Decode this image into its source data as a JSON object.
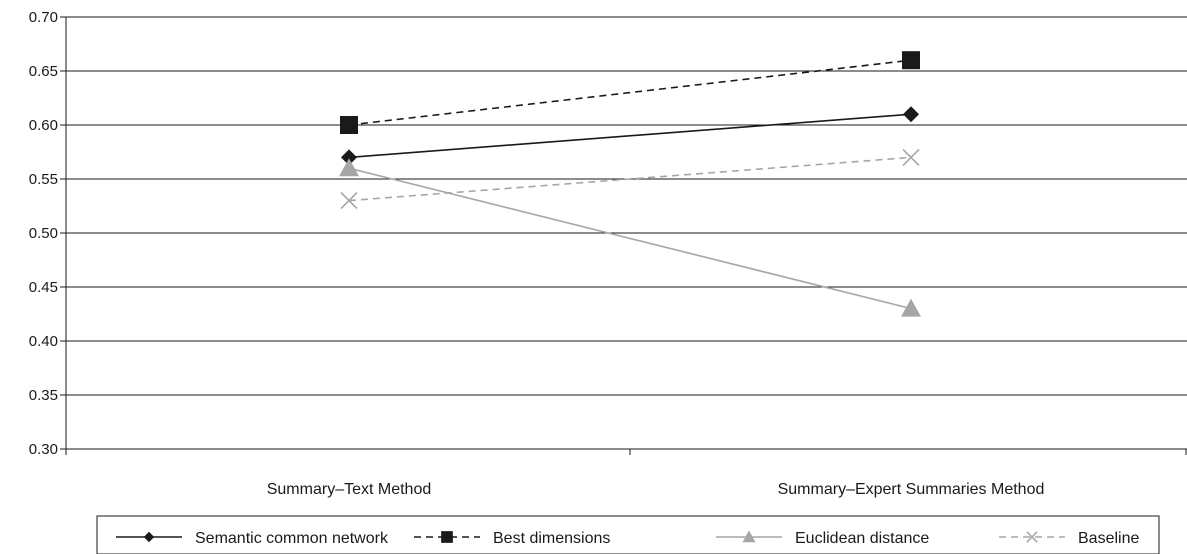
{
  "chart_data": {
    "type": "line",
    "categories": [
      "Summary–Text Method",
      "Summary–Expert Summaries Method"
    ],
    "ylim": [
      0.3,
      0.7
    ],
    "yticks": [
      "0.30",
      "0.35",
      "0.40",
      "0.45",
      "0.50",
      "0.55",
      "0.60",
      "0.65",
      "0.70"
    ],
    "grid": true,
    "legend_position": "bottom",
    "series": [
      {
        "name": "Semantic common network",
        "values": [
          0.57,
          0.61
        ],
        "color": "#1a1a1a",
        "dash": "solid",
        "marker": "diamond"
      },
      {
        "name": "Best dimensions",
        "values": [
          0.6,
          0.66
        ],
        "color": "#1a1a1a",
        "dash": "dashed",
        "marker": "square"
      },
      {
        "name": "Euclidean distance",
        "values": [
          0.56,
          0.43
        ],
        "color": "#a6a6a6",
        "dash": "solid",
        "marker": "triangle"
      },
      {
        "name": "Baseline",
        "values": [
          0.53,
          0.57
        ],
        "color": "#a6a6a6",
        "dash": "dashed",
        "marker": "x"
      }
    ]
  }
}
